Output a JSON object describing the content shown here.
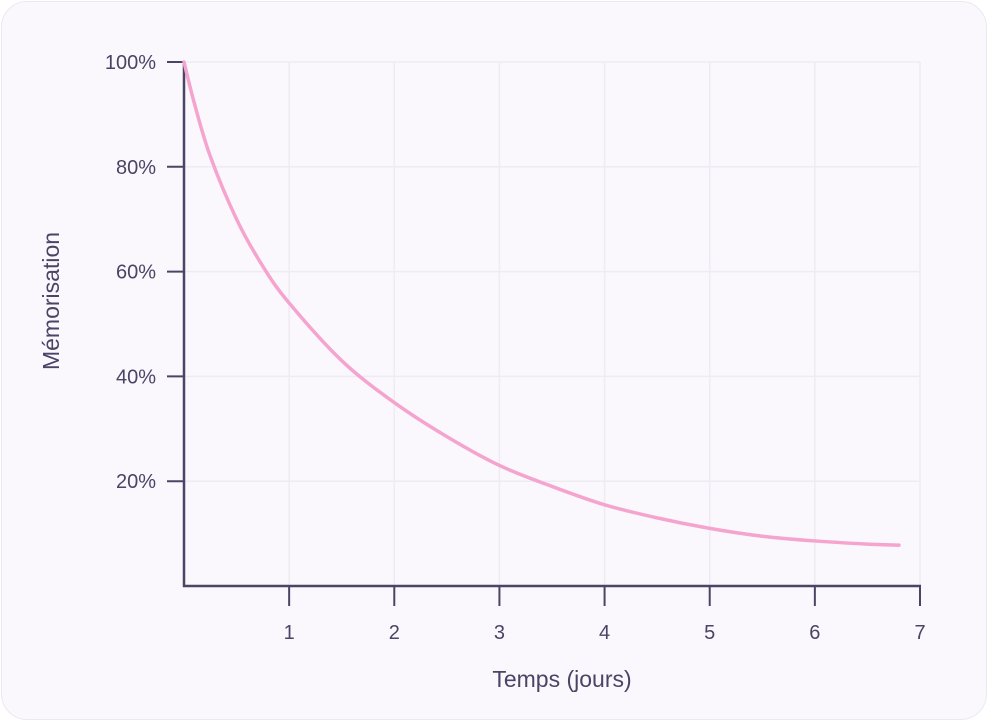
{
  "chart_data": {
    "type": "line",
    "title": "",
    "xlabel": "Temps (jours)",
    "ylabel": "Mémorisation",
    "xlim": [
      0,
      7
    ],
    "ylim": [
      0,
      100
    ],
    "x_ticks": [
      "1",
      "2",
      "3",
      "4",
      "5",
      "6",
      "7"
    ],
    "y_ticks": [
      "20%",
      "40%",
      "60%",
      "80%",
      "100%"
    ],
    "grid": true,
    "legend": "none",
    "series": [
      {
        "x": [
          0,
          0.1,
          0.25,
          0.5,
          0.75,
          1,
          1.5,
          2,
          2.5,
          3,
          3.5,
          4,
          4.5,
          5,
          5.5,
          6,
          6.5,
          6.8
        ],
        "y": [
          100,
          92,
          82,
          70,
          61,
          54,
          43,
          35,
          28.5,
          23,
          19,
          15.5,
          13,
          11,
          9.5,
          8.6,
          8,
          7.8
        ],
        "color": "#f4a4cf"
      }
    ],
    "colors": {
      "axis": "#4a4466",
      "grid": "#eeebf2",
      "line": "#f4a4cf"
    }
  }
}
